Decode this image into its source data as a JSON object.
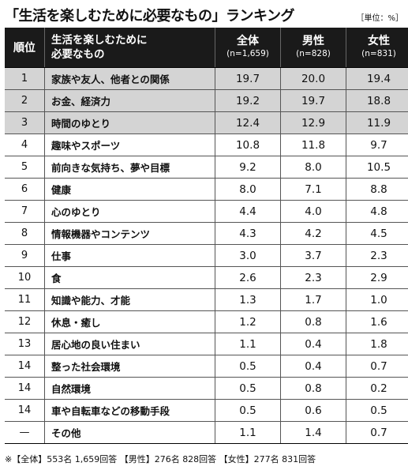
{
  "title": "「生活を楽しむために必要なもの」ランキング",
  "unit": "［単位：%］",
  "headers": {
    "rank": "順位",
    "item_line1": "生活を楽しむために",
    "item_line2": "必要なもの",
    "total": "全体",
    "total_n": "(n=1,659)",
    "male": "男性",
    "male_n": "(n=828)",
    "female": "女性",
    "female_n": "(n=831)"
  },
  "rows": [
    {
      "rank": "1",
      "item": "家族や友人、他者との関係",
      "total": "19.7",
      "male": "20.0",
      "female": "19.4",
      "highlight": true
    },
    {
      "rank": "2",
      "item": "お金、経済力",
      "total": "19.2",
      "male": "19.7",
      "female": "18.8",
      "highlight": true
    },
    {
      "rank": "3",
      "item": "時間のゆとり",
      "total": "12.4",
      "male": "12.9",
      "female": "11.9",
      "highlight": true
    },
    {
      "rank": "4",
      "item": "趣味やスポーツ",
      "total": "10.8",
      "male": "11.8",
      "female": "9.7",
      "highlight": false
    },
    {
      "rank": "5",
      "item": "前向きな気持ち、夢や目標",
      "total": "9.2",
      "male": "8.0",
      "female": "10.5",
      "highlight": false
    },
    {
      "rank": "6",
      "item": "健康",
      "total": "8.0",
      "male": "7.1",
      "female": "8.8",
      "highlight": false
    },
    {
      "rank": "7",
      "item": "心のゆとり",
      "total": "4.4",
      "male": "4.0",
      "female": "4.8",
      "highlight": false
    },
    {
      "rank": "8",
      "item": "情報機器やコンテンツ",
      "total": "4.3",
      "male": "4.2",
      "female": "4.5",
      "highlight": false
    },
    {
      "rank": "9",
      "item": "仕事",
      "total": "3.0",
      "male": "3.7",
      "female": "2.3",
      "highlight": false
    },
    {
      "rank": "10",
      "item": "食",
      "total": "2.6",
      "male": "2.3",
      "female": "2.9",
      "highlight": false
    },
    {
      "rank": "11",
      "item": "知識や能力、才能",
      "total": "1.3",
      "male": "1.7",
      "female": "1.0",
      "highlight": false
    },
    {
      "rank": "12",
      "item": "休息・癒し",
      "total": "1.2",
      "male": "0.8",
      "female": "1.6",
      "highlight": false
    },
    {
      "rank": "13",
      "item": "居心地の良い住まい",
      "total": "1.1",
      "male": "0.4",
      "female": "1.8",
      "highlight": false
    },
    {
      "rank": "14",
      "item": "整った社会環境",
      "total": "0.5",
      "male": "0.4",
      "female": "0.7",
      "highlight": false
    },
    {
      "rank": "14",
      "item": "自然環境",
      "total": "0.5",
      "male": "0.8",
      "female": "0.2",
      "highlight": false
    },
    {
      "rank": "14",
      "item": "車や自転車などの移動手段",
      "total": "0.5",
      "male": "0.6",
      "female": "0.5",
      "highlight": false
    },
    {
      "rank": "—",
      "item": "その他",
      "total": "1.1",
      "male": "1.4",
      "female": "0.7",
      "highlight": false
    }
  ],
  "footnote": "※【全体】553名 1,659回答 【男性】276名 828回答 【女性】277名 831回答",
  "colors": {
    "header_bg": "#1a1a1a",
    "highlight_bg": "#d4d4d4"
  }
}
